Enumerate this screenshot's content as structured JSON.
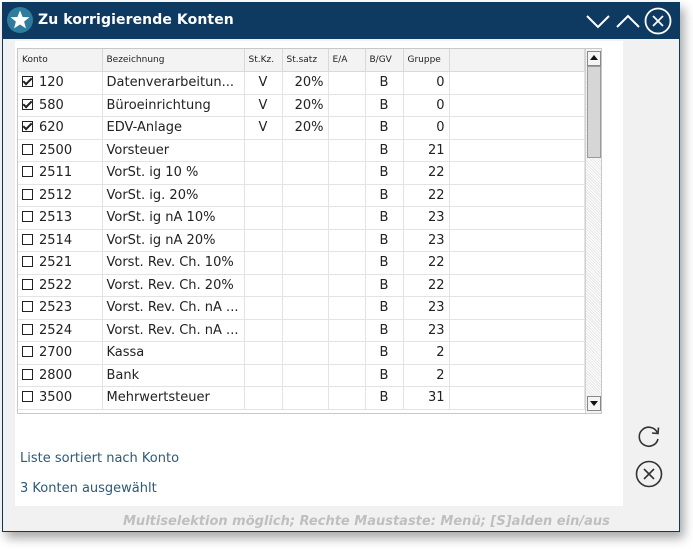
{
  "window": {
    "title": "Zu korrigierende Konten"
  },
  "columns": [
    "Konto",
    "Bezeichnung",
    "St.Kz.",
    "St.satz",
    "E/A",
    "B/GV",
    "Gruppe"
  ],
  "rows": [
    {
      "checked": true,
      "konto": "120",
      "bezeichnung": "Datenverarbeitun...",
      "stkz": "V",
      "stsatz": "20%",
      "ea": "",
      "bgv": "B",
      "gruppe": "0"
    },
    {
      "checked": true,
      "konto": "580",
      "bezeichnung": "Büroeinrichtung",
      "stkz": "V",
      "stsatz": "20%",
      "ea": "",
      "bgv": "B",
      "gruppe": "0"
    },
    {
      "checked": true,
      "konto": "620",
      "bezeichnung": "EDV-Anlage",
      "stkz": "V",
      "stsatz": "20%",
      "ea": "",
      "bgv": "B",
      "gruppe": "0"
    },
    {
      "checked": false,
      "konto": "2500",
      "bezeichnung": "Vorsteuer",
      "stkz": "",
      "stsatz": "",
      "ea": "",
      "bgv": "B",
      "gruppe": "21"
    },
    {
      "checked": false,
      "konto": "2511",
      "bezeichnung": "VorSt. ig 10 %",
      "stkz": "",
      "stsatz": "",
      "ea": "",
      "bgv": "B",
      "gruppe": "22"
    },
    {
      "checked": false,
      "konto": "2512",
      "bezeichnung": "VorSt. ig. 20%",
      "stkz": "",
      "stsatz": "",
      "ea": "",
      "bgv": "B",
      "gruppe": "22"
    },
    {
      "checked": false,
      "konto": "2513",
      "bezeichnung": "VorSt. ig nA 10%",
      "stkz": "",
      "stsatz": "",
      "ea": "",
      "bgv": "B",
      "gruppe": "23"
    },
    {
      "checked": false,
      "konto": "2514",
      "bezeichnung": "VorSt. ig nA 20%",
      "stkz": "",
      "stsatz": "",
      "ea": "",
      "bgv": "B",
      "gruppe": "23"
    },
    {
      "checked": false,
      "konto": "2521",
      "bezeichnung": "Vorst. Rev. Ch. 10%",
      "stkz": "",
      "stsatz": "",
      "ea": "",
      "bgv": "B",
      "gruppe": "22"
    },
    {
      "checked": false,
      "konto": "2522",
      "bezeichnung": "Vorst. Rev. Ch. 20%",
      "stkz": "",
      "stsatz": "",
      "ea": "",
      "bgv": "B",
      "gruppe": "22"
    },
    {
      "checked": false,
      "konto": "2523",
      "bezeichnung": "Vorst. Rev. Ch. nA ...",
      "stkz": "",
      "stsatz": "",
      "ea": "",
      "bgv": "B",
      "gruppe": "23"
    },
    {
      "checked": false,
      "konto": "2524",
      "bezeichnung": "Vorst. Rev. Ch. nA ...",
      "stkz": "",
      "stsatz": "",
      "ea": "",
      "bgv": "B",
      "gruppe": "23"
    },
    {
      "checked": false,
      "konto": "2700",
      "bezeichnung": "Kassa",
      "stkz": "",
      "stsatz": "",
      "ea": "",
      "bgv": "B",
      "gruppe": "2"
    },
    {
      "checked": false,
      "konto": "2800",
      "bezeichnung": "Bank",
      "stkz": "",
      "stsatz": "",
      "ea": "",
      "bgv": "B",
      "gruppe": "2"
    },
    {
      "checked": false,
      "konto": "3500",
      "bezeichnung": "Mehrwertsteuer",
      "stkz": "",
      "stsatz": "",
      "ea": "",
      "bgv": "B",
      "gruppe": "31"
    }
  ],
  "status": {
    "sort": "Liste sortiert nach Konto",
    "selected": "3 Konten ausgewählt"
  },
  "hint": "Multiselektion möglich; Rechte Maustaste: Menü;    [S]alden ein/aus",
  "icons": {
    "title": "star-icon",
    "minimize": "chevron-down-icon",
    "maximize": "chevron-up-icon",
    "close": "close-circle-icon",
    "refresh": "refresh-icon",
    "cancel": "cancel-circle-icon"
  },
  "colors": {
    "titlebar": "#0e3a61",
    "status_text": "#2c5a78"
  }
}
